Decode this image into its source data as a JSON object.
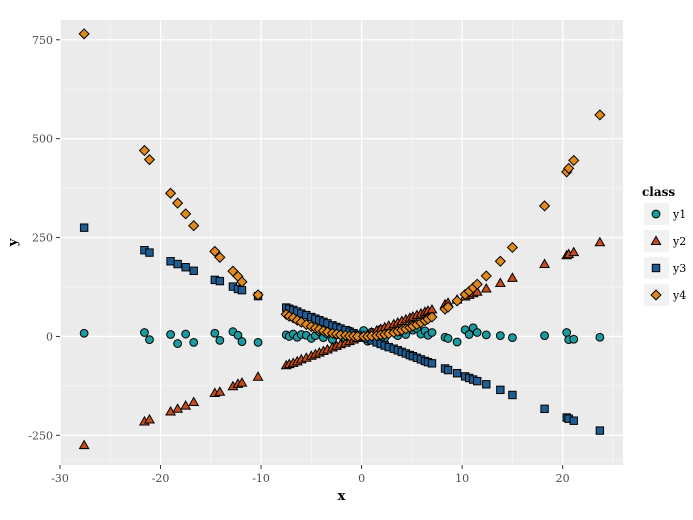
{
  "chart_data": {
    "type": "scatter",
    "xlabel": "x",
    "ylabel": "y",
    "xlim": [
      -30,
      26
    ],
    "ylim": [
      -325,
      800
    ],
    "x_ticks": [
      -30,
      -20,
      -10,
      0,
      10,
      20
    ],
    "y_ticks": [
      -250,
      0,
      250,
      500,
      750
    ],
    "x_tick_labels": [
      "-30",
      "-20",
      "-10",
      "0",
      "10",
      "20"
    ],
    "y_tick_labels": [
      "-250",
      "0",
      "250",
      "500",
      "750"
    ],
    "grid": true,
    "legend": {
      "title": "class",
      "placement": "right"
    },
    "x": [
      -27.6,
      -21.6,
      -21.1,
      -19.0,
      -18.3,
      -17.5,
      -16.7,
      -14.6,
      -14.1,
      -12.8,
      -12.3,
      -11.9,
      -10.3,
      -7.5,
      -7.2,
      -6.8,
      -6.4,
      -6.0,
      -5.5,
      -5.0,
      -4.6,
      -4.2,
      -3.8,
      -3.4,
      -2.9,
      -2.5,
      -2.1,
      -1.6,
      -1.2,
      -0.8,
      -0.4,
      0.2,
      0.6,
      1.0,
      1.5,
      1.9,
      2.3,
      2.7,
      3.2,
      3.6,
      4.0,
      4.4,
      4.8,
      5.1,
      5.5,
      5.9,
      6.3,
      6.6,
      7.0,
      8.3,
      8.6,
      9.5,
      10.3,
      10.7,
      11.1,
      11.5,
      12.4,
      13.8,
      15.0,
      18.2,
      20.4,
      20.6,
      21.1,
      23.7
    ],
    "series": [
      {
        "name": "y1",
        "color": "#1b9aa0",
        "marker": "circle",
        "values": [
          8,
          10,
          -8,
          5,
          -18,
          6,
          -15,
          8,
          -10,
          12,
          3,
          -13,
          -15,
          4,
          0,
          6,
          -2,
          5,
          3,
          -5,
          2,
          12,
          -3,
          6,
          -8,
          4,
          10,
          -6,
          14,
          8,
          3,
          15,
          -12,
          11,
          6,
          18,
          -4,
          9,
          14,
          2,
          11,
          5,
          22,
          16,
          20,
          6,
          14,
          3,
          10,
          -2,
          -5,
          -14,
          17,
          5,
          22,
          10,
          4,
          2,
          -3,
          2,
          10,
          -8,
          -7,
          -2
        ]
      },
      {
        "name": "y2",
        "color": "#c44e1b",
        "marker": "triangle",
        "values": [
          -275,
          -215,
          -210,
          -190,
          -183,
          -175,
          -166,
          -143,
          -140,
          -126,
          -120,
          -117,
          -102,
          -73,
          -70,
          -67,
          -63,
          -58,
          -54,
          -49,
          -45,
          -41,
          -37,
          -33,
          -28,
          -24,
          -20,
          -16,
          -12,
          -8,
          -4,
          2,
          6,
          10,
          15,
          19,
          23,
          27,
          31,
          35,
          39,
          43,
          47,
          50,
          54,
          58,
          62,
          65,
          68,
          81,
          85,
          93,
          101,
          105,
          109,
          113,
          121,
          135,
          148,
          183,
          205,
          208,
          213,
          238
        ]
      },
      {
        "name": "y3",
        "color": "#1f5c91",
        "marker": "square",
        "values": [
          275,
          218,
          212,
          190,
          183,
          175,
          166,
          143,
          140,
          126,
          120,
          117,
          102,
          73,
          70,
          67,
          63,
          58,
          54,
          49,
          45,
          41,
          37,
          33,
          28,
          24,
          20,
          16,
          12,
          8,
          4,
          -2,
          -6,
          -10,
          -15,
          -19,
          -23,
          -27,
          -31,
          -35,
          -39,
          -43,
          -47,
          -50,
          -54,
          -58,
          -62,
          -65,
          -68,
          -81,
          -85,
          -93,
          -101,
          -105,
          -109,
          -113,
          -121,
          -135,
          -148,
          -183,
          -205,
          -208,
          -213,
          -238
        ]
      },
      {
        "name": "y4",
        "color": "#e08a1e",
        "marker": "diamond",
        "values": [
          765,
          470,
          447,
          362,
          337,
          310,
          280,
          215,
          200,
          165,
          152,
          138,
          105,
          56,
          51,
          47,
          41,
          36,
          30,
          25,
          21,
          18,
          14,
          11,
          8,
          6,
          4,
          3,
          1,
          1,
          0,
          0,
          0,
          1,
          2,
          4,
          5,
          7,
          10,
          13,
          16,
          19,
          23,
          26,
          30,
          35,
          40,
          44,
          49,
          69,
          74,
          90,
          106,
          114,
          123,
          132,
          153,
          190,
          225,
          330,
          416,
          425,
          445,
          560
        ]
      }
    ]
  }
}
